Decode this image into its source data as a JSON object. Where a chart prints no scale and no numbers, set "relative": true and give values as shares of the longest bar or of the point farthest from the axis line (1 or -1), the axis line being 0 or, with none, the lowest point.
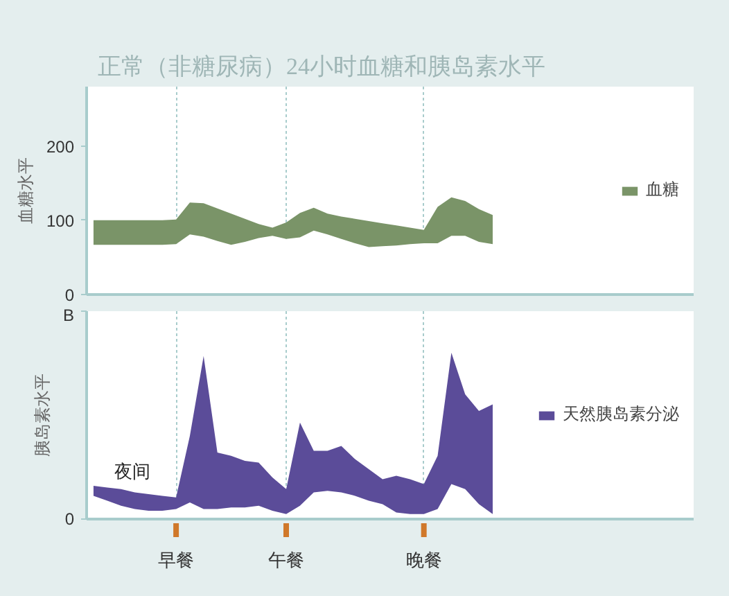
{
  "chart_data": [
    {
      "type": "area",
      "stacked": true,
      "title": "正常（非糖尿病）24小时血糖和胰岛素水平",
      "ylabel": "血糖水平",
      "categories": [
        null,
        null,
        null,
        null,
        null,
        null,
        null,
        null,
        null,
        null,
        null,
        null,
        null,
        null,
        null,
        null,
        null,
        null,
        null,
        null,
        null,
        null,
        null,
        null,
        null,
        null,
        null,
        null,
        null,
        null
      ],
      "ylim": [
        0,
        280
      ],
      "yticks": [
        0,
        100,
        200
      ],
      "tick_labels": "y",
      "grid": "x",
      "legend": "right",
      "series": [
        {
          "color": "#ffffff",
          "values": [
            67,
            67,
            67,
            67,
            67,
            67,
            68,
            81,
            78,
            72,
            67,
            71,
            76,
            79,
            75,
            77,
            86,
            81,
            75,
            69,
            64,
            65,
            66,
            68,
            69,
            69,
            79,
            79,
            71,
            68
          ]
        },
        {
          "name": "血糖",
          "color": "#7a9468",
          "values": [
            33,
            33,
            33,
            33,
            33,
            33,
            33,
            43,
            45,
            44,
            42,
            31,
            19,
            11,
            22,
            33,
            31,
            28,
            30,
            33,
            35,
            31,
            27,
            22,
            18,
            49,
            52,
            47,
            44,
            39
          ]
        }
      ]
    },
    {
      "type": "area",
      "stacked": true,
      "ylabel": "胰岛素水平",
      "relative": true,
      "categories": [
        null,
        null,
        null,
        null,
        null,
        null,
        "早餐",
        null,
        null,
        null,
        null,
        null,
        null,
        null,
        "午餐",
        null,
        null,
        null,
        null,
        null,
        null,
        null,
        null,
        null,
        "晚餐",
        null,
        null,
        null,
        null,
        null
      ],
      "grid": "x",
      "legend": "right",
      "series": [
        {
          "color": "#ffffff",
          "values": [
            0.14,
            0.11,
            0.08,
            0.06,
            0.05,
            0.05,
            0.06,
            0.1,
            0.06,
            0.06,
            0.07,
            0.07,
            0.08,
            0.05,
            0.03,
            0.08,
            0.16,
            0.17,
            0.16,
            0.14,
            0.11,
            0.09,
            0.04,
            0.03,
            0.03,
            0.06,
            0.21,
            0.18,
            0.09,
            0.03
          ]
        },
        {
          "name": "天然胰岛素分泌",
          "color": "#5b4c99",
          "values": [
            0.06,
            0.08,
            0.1,
            0.1,
            0.1,
            0.09,
            0.07,
            0.4,
            0.92,
            0.34,
            0.31,
            0.28,
            0.26,
            0.2,
            0.15,
            0.5,
            0.25,
            0.24,
            0.28,
            0.22,
            0.19,
            0.15,
            0.22,
            0.21,
            0.18,
            0.32,
            0.79,
            0.57,
            0.56,
            0.66
          ]
        }
      ],
      "annotations": [
        "0",
        "B",
        "夜间"
      ]
    }
  ]
}
